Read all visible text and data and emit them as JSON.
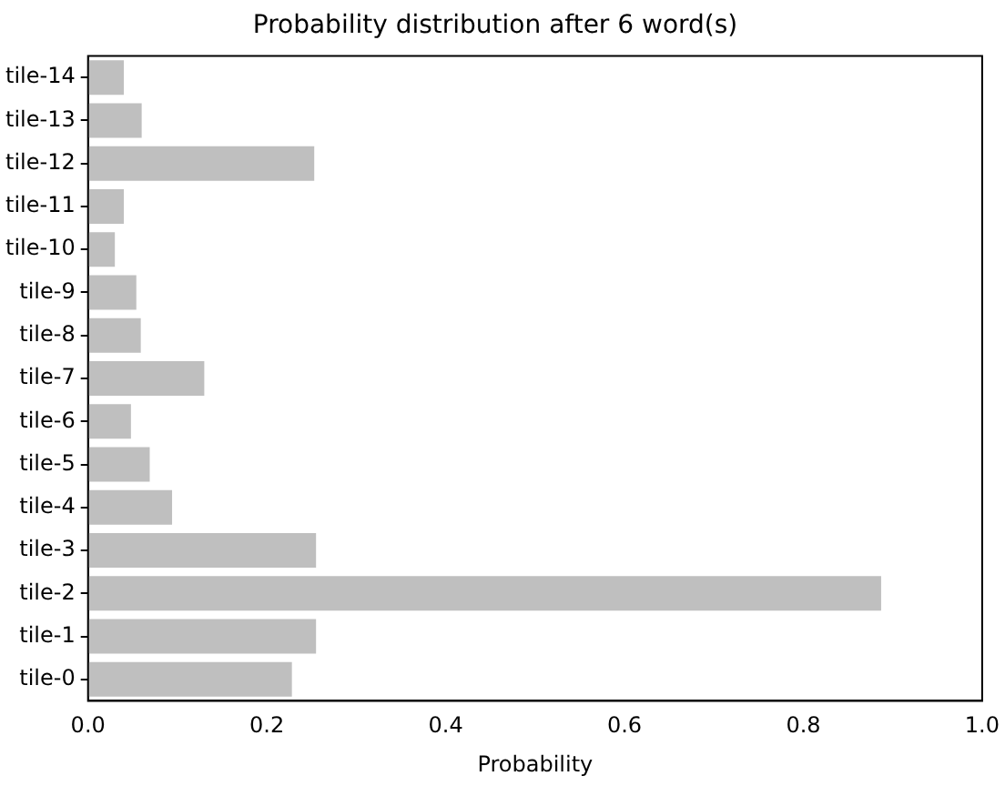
{
  "chart_data": {
    "type": "bar",
    "orientation": "horizontal",
    "title": "Probability distribution after 6 word(s)",
    "xlabel": "Probability",
    "categories": [
      "tile-14",
      "tile-13",
      "tile-12",
      "tile-11",
      "tile-10",
      "tile-9",
      "tile-8",
      "tile-7",
      "tile-6",
      "tile-5",
      "tile-4",
      "tile-3",
      "tile-2",
      "tile-1",
      "tile-0"
    ],
    "values": [
      0.04,
      0.06,
      0.253,
      0.04,
      0.03,
      0.054,
      0.059,
      0.13,
      0.048,
      0.069,
      0.094,
      0.255,
      0.887,
      0.255,
      0.228
    ],
    "color": "#bfbfbf",
    "xlim": [
      0,
      1
    ],
    "xticks": [
      {
        "value": 0,
        "label": "0.0"
      },
      {
        "value": 0.2,
        "label": "0.2"
      },
      {
        "value": 0.4,
        "label": "0.4"
      },
      {
        "value": 0.6,
        "label": "0.6"
      },
      {
        "value": 0.8,
        "label": "0.8"
      },
      {
        "value": 1,
        "label": "1.0"
      }
    ],
    "grid": false,
    "legend": false
  }
}
